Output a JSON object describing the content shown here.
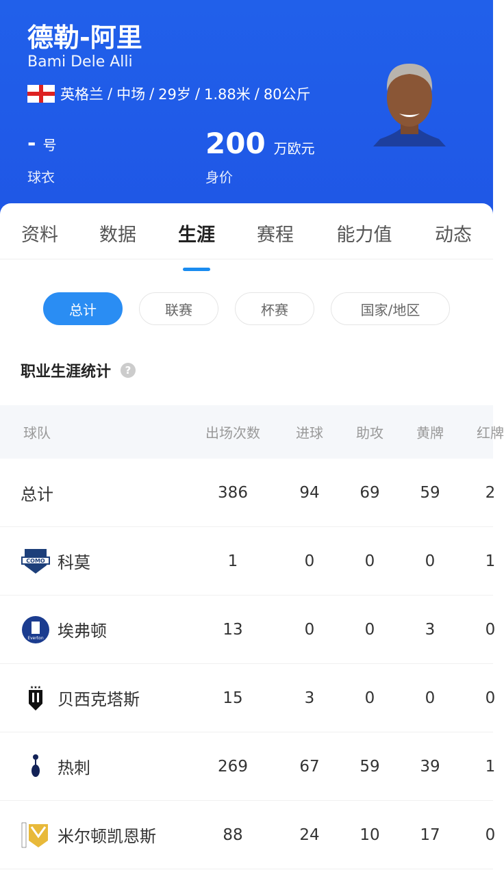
{
  "player": {
    "name_cn": "德勒-阿里",
    "name_en": "Bami Dele Alli",
    "nationality": "英格兰",
    "position": "中场",
    "age": "29岁",
    "height": "1.88米",
    "weight": "80公斤",
    "shirt_number": "-",
    "shirt_unit": "号",
    "shirt_label": "球衣",
    "value": "200",
    "value_unit": "万欧元",
    "value_label": "身价",
    "sep": "/"
  },
  "tabs": [
    "资料",
    "数据",
    "生涯",
    "赛程",
    "能力值",
    "动态"
  ],
  "active_tab": "生涯",
  "filters": [
    "总计",
    "联赛",
    "杯赛",
    "国家/地区"
  ],
  "section_title": "职业生涯统计",
  "help_icon": "?",
  "table": {
    "headers": [
      "球队",
      "出场次数",
      "进球",
      "助攻",
      "黄牌",
      "红牌"
    ],
    "rows": [
      {
        "team": "总计",
        "apps": "386",
        "goals": "94",
        "assists": "69",
        "yellow": "59",
        "red": "2"
      },
      {
        "team": "科莫",
        "logo": "como-logo",
        "apps": "1",
        "goals": "0",
        "assists": "0",
        "yellow": "0",
        "red": "1"
      },
      {
        "team": "埃弗顿",
        "logo": "everton-logo",
        "apps": "13",
        "goals": "0",
        "assists": "0",
        "yellow": "3",
        "red": "0"
      },
      {
        "team": "贝西克塔斯",
        "logo": "besiktas-logo",
        "apps": "15",
        "goals": "3",
        "assists": "0",
        "yellow": "0",
        "red": "0"
      },
      {
        "team": "热刺",
        "logo": "tottenham-logo",
        "apps": "269",
        "goals": "67",
        "assists": "59",
        "yellow": "39",
        "red": "1"
      },
      {
        "team": "米尔顿凯恩斯",
        "logo": "mk-dons-logo",
        "apps": "88",
        "goals": "24",
        "assists": "10",
        "yellow": "17",
        "red": "0"
      }
    ]
  },
  "colors": {
    "header_bg": "#1f5ae7",
    "accent": "#2a8df3"
  }
}
